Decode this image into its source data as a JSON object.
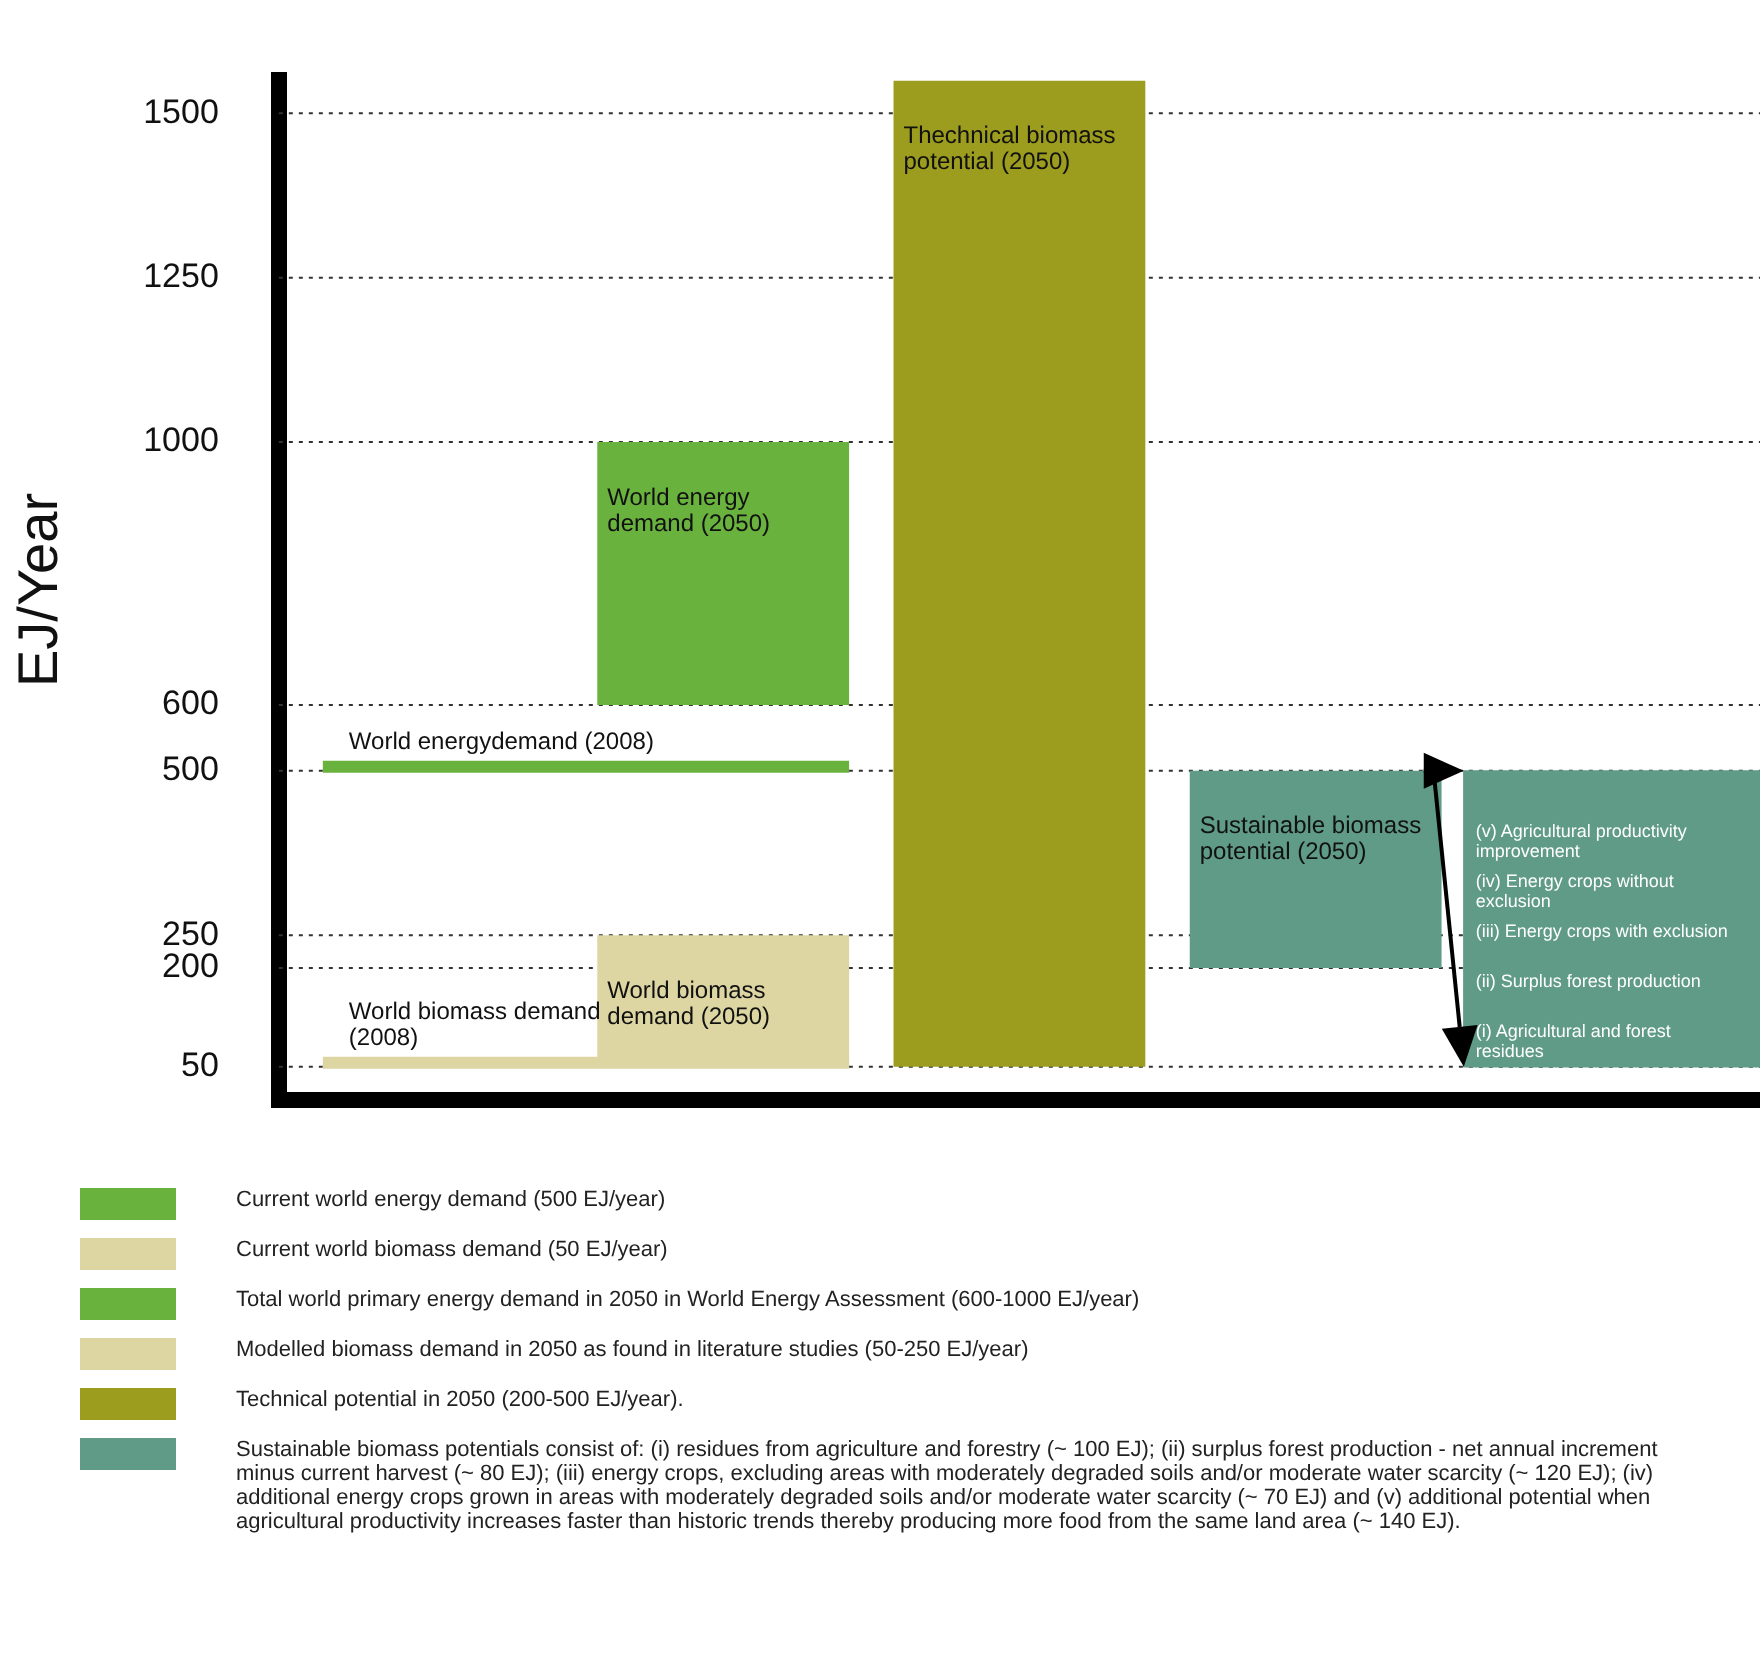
{
  "chart_data": {
    "type": "bar",
    "ylabel": "EJ/Year",
    "categories": [
      null,
      null,
      null,
      null,
      null
    ],
    "ylim": [
      0,
      1550
    ],
    "yticks": [
      50,
      200,
      250,
      500,
      600,
      1000,
      1250,
      1500
    ],
    "grid": "y",
    "legend": false,
    "ref_lines": [
      {
        "axis": "y",
        "value": 500,
        "label": "World energydemand (2008)",
        "color": "#6ab23e"
      },
      {
        "axis": "y",
        "value": 50,
        "label": "World biomass demand (2008)",
        "color": "#ddd6a2"
      }
    ],
    "series": [
      {
        "name": "World energy demand (2050)",
        "color": "#6ab23e",
        "values": [
          null,
          400,
          null,
          null,
          null
        ],
        "base": [
          null,
          600,
          null,
          null,
          null
        ]
      },
      {
        "name": "World biomass demand (2050)",
        "color": "#ddd6a2",
        "values": [
          null,
          200,
          null,
          null,
          null
        ],
        "base": [
          null,
          50,
          null,
          null,
          null
        ]
      },
      {
        "name": "Thechnical biomass potential (2050)",
        "color": "#9c9c1e",
        "values": [
          null,
          null,
          1500,
          null,
          null
        ],
        "base": [
          null,
          null,
          50,
          null,
          null
        ]
      },
      {
        "name": "Sustainable biomass potential (2050)",
        "color": "#5f9b87",
        "values": [
          null,
          null,
          null,
          300,
          null
        ],
        "base": [
          null,
          null,
          null,
          200,
          null
        ]
      },
      {
        "color": "#5f9b87",
        "values": [
          null,
          null,
          null,
          null,
          450
        ],
        "base": [
          null,
          null,
          null,
          null,
          50
        ]
      }
    ],
    "annotations": [
      "Current world energy demand (500 EJ/year)",
      "Current world biomass demand (50 EJ/year)",
      "Total world primary energy demand in 2050 in World Energy Assessment (600-1000 EJ/year)",
      "Modelled biomass demand in 2050 as found in literature studies (50-250 EJ/year)",
      "Technical potential in 2050 (200-500 EJ/year).",
      "Sustainable biomass potentials consist of: (i) residues from agriculture and forestry (~ 100 EJ); (ii) surplus forest production - net annual increment minus current harvest (~ 80 EJ); (iii) energy crops, excluding areas with moderately degraded soils and/or moderate water scarcity (~ 120 EJ); (iv) additional energy crops grown in areas with moderately degraded soils and/or moderate water scarcity (~ 70 EJ) and (v) additional potential when agricultural productivity increases faster than historic trends thereby producing more food from the same land area (~ 140 EJ).",
      "(v) Agricultural productivity improvement",
      "(iv) Energy crops without exclusion",
      "(iii) Energy crops with exclusion",
      "(ii) Surplus forest production",
      "(i) Agricultural and forest residues"
    ]
  }
}
